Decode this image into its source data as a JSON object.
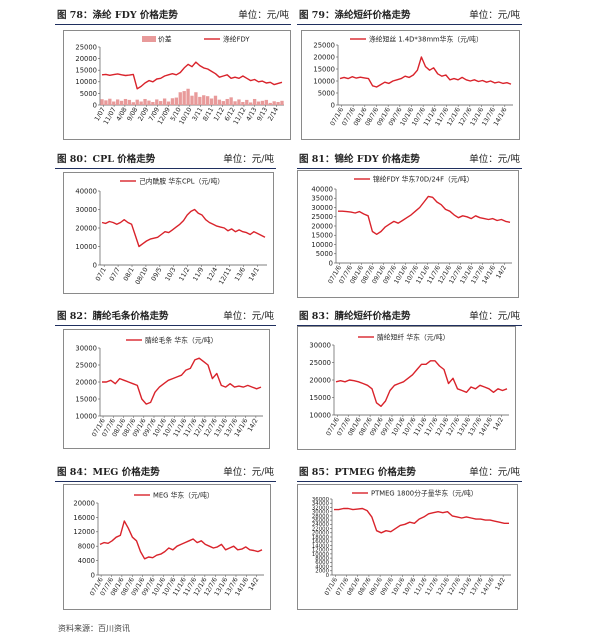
{
  "unit_prefix": "单位：",
  "source": "资料来源：百川资讯",
  "chart_data": [
    {
      "id": "c78",
      "fig": "图 78：",
      "title": "涤纶 FDY 价格走势",
      "unit": "元/吨",
      "type": "line+bar",
      "ylim": [
        0,
        25000
      ],
      "yticks": [
        0,
        5000,
        10000,
        15000,
        20000,
        25000
      ],
      "xticks": [
        "1/07",
        "11/07",
        "4/08",
        "9/08",
        "2/09",
        "7/09",
        "12/09",
        "5/10",
        "10/10",
        "3/11",
        "8/11",
        "1/12",
        "6/12",
        "11/12",
        "4/13",
        "9/13",
        "2/14"
      ],
      "series": [
        {
          "name": "涤纶FDY",
          "kind": "line",
          "color": "#d9232b",
          "values": [
            13000,
            13200,
            12800,
            13100,
            13400,
            13000,
            12700,
            12900,
            13200,
            7000,
            8000,
            9500,
            10500,
            10000,
            11200,
            11500,
            12500,
            13000,
            13500,
            13000,
            14000,
            16000,
            17500,
            16500,
            18500,
            17000,
            16000,
            15500,
            14500,
            13500,
            12000,
            12500,
            13000,
            11500,
            12000,
            11500,
            12500,
            11500,
            10500,
            11000,
            10000,
            10300,
            9500,
            9800,
            8800,
            9300,
            9800
          ]
        },
        {
          "name": "价差",
          "kind": "bar",
          "color": "#e89a9a",
          "values": [
            2500,
            2000,
            2700,
            1500,
            2400,
            1800,
            2600,
            2200,
            1200,
            2300,
            1500,
            2600,
            1900,
            1300,
            2400,
            1700,
            2800,
            1500,
            2900,
            3200,
            5500,
            6000,
            7000,
            4000,
            5500,
            3500,
            4200,
            3800,
            2800,
            4000,
            2300,
            1700,
            2600,
            3300,
            1600,
            2400,
            1300,
            2200,
            1100,
            2600,
            1500,
            1800,
            2200,
            900,
            1600,
            1300,
            1800
          ]
        }
      ]
    },
    {
      "id": "c79",
      "fig": "图 79：",
      "title": "涤纶短纤价格走势",
      "unit": "元/吨",
      "type": "line",
      "ylim": [
        0,
        25000
      ],
      "yticks": [
        0,
        5000,
        10000,
        15000,
        20000,
        25000
      ],
      "xticks": [
        "07/1/6",
        "07/7/6",
        "08/1/6",
        "08/7/6",
        "09/1/6",
        "09/7/6",
        "10/1/6",
        "10/7/6",
        "11/1/6",
        "11/7/6",
        "12/1/6",
        "12/7/6",
        "13/1/6",
        "13/7/6",
        "14/1/6"
      ],
      "series": [
        {
          "name": "涤纶短丝 1.4D*38mm华东（元/吨）",
          "kind": "line",
          "color": "#d9232b",
          "values": [
            11000,
            11500,
            11000,
            11800,
            11200,
            11600,
            11300,
            11000,
            8000,
            7500,
            8500,
            9500,
            9000,
            10000,
            10500,
            11000,
            12000,
            11500,
            12500,
            14500,
            20000,
            16000,
            14500,
            15500,
            13000,
            12000,
            12500,
            10500,
            11000,
            10500,
            11500,
            10500,
            10000,
            10500,
            9800,
            10200,
            9500,
            10000,
            9200,
            9600,
            9000,
            9300,
            8700
          ]
        }
      ]
    },
    {
      "id": "c80",
      "fig": "图 80：",
      "title": "CPL 价格走势",
      "unit": "元/吨",
      "type": "line",
      "ylim": [
        0,
        40000
      ],
      "yticks": [
        0,
        10000,
        20000,
        30000,
        40000
      ],
      "xticks": [
        "07/1",
        "07/7",
        "08/1",
        "08/10",
        "09/5",
        "10/3",
        "11/2",
        "11/9",
        "12/4",
        "12/11",
        "13/6",
        "14/1"
      ],
      "series": [
        {
          "name": "己内酰胺 华东CPL（元/吨）",
          "kind": "line",
          "color": "#d9232b",
          "values": [
            23000,
            22500,
            23500,
            23000,
            22000,
            23000,
            24500,
            23000,
            22000,
            16000,
            10000,
            11500,
            13000,
            14000,
            14500,
            15000,
            16500,
            18000,
            17500,
            19000,
            20500,
            22000,
            24000,
            27000,
            29000,
            30000,
            28000,
            27000,
            24500,
            23000,
            22000,
            21000,
            20500,
            20000,
            18500,
            19500,
            18000,
            19000,
            18000,
            17500,
            16500,
            18000,
            17000,
            16000,
            15000
          ]
        }
      ]
    },
    {
      "id": "c81",
      "fig": "图 81：",
      "title": "锦纶 FDY 价格走势",
      "unit": "元/吨",
      "type": "line",
      "ylim": [
        0,
        40000
      ],
      "yticks": [
        0,
        5000,
        10000,
        15000,
        20000,
        25000,
        30000,
        35000,
        40000
      ],
      "xticks": [
        "07/1/6",
        "07/7/6",
        "08/1/6",
        "08/7/6",
        "09/1/6",
        "09/7/6",
        "10/1/6",
        "10/7/6",
        "11/1/6",
        "11/7/6",
        "12/1/6",
        "12/7/6",
        "13/1/6",
        "13/7/6",
        "14/1/6",
        "14/2"
      ],
      "series": [
        {
          "name": "锦纶FDY 华东70D/24F（元/吨）",
          "kind": "line",
          "color": "#d9232b",
          "values": [
            28000,
            28000,
            27800,
            27500,
            27000,
            27800,
            26500,
            25500,
            17000,
            15500,
            17000,
            19500,
            21000,
            22500,
            21500,
            23000,
            24500,
            26000,
            28000,
            30000,
            33000,
            36000,
            35500,
            33000,
            31500,
            29000,
            28000,
            26000,
            24500,
            25500,
            25000,
            24000,
            25500,
            24500,
            24000,
            23500,
            24000,
            23000,
            23500,
            22500,
            22000
          ]
        }
      ]
    },
    {
      "id": "c82",
      "fig": "图 82：",
      "title": "腈纶毛条价格走势",
      "unit": "元/吨",
      "type": "line",
      "ylim": [
        10000,
        30000
      ],
      "yticks": [
        10000,
        15000,
        20000,
        25000,
        30000
      ],
      "xticks": [
        "07/1/6",
        "07/7/6",
        "08/1/6",
        "08/7/6",
        "09/1/6",
        "09/7/6",
        "10/1/6",
        "10/7/6",
        "11/1/6",
        "11/7/6",
        "12/1/6",
        "12/7/6",
        "13/1/6",
        "13/7/6",
        "14/1/6",
        "14/2"
      ],
      "series": [
        {
          "name": "腈纶毛条 华东（元/吨）",
          "kind": "line",
          "color": "#d9232b",
          "values": [
            20000,
            20000,
            20500,
            19500,
            21000,
            20500,
            20000,
            19500,
            19000,
            15000,
            13500,
            14000,
            17000,
            18500,
            19500,
            20500,
            21000,
            21500,
            22000,
            23500,
            24000,
            26500,
            27000,
            26000,
            25000,
            21000,
            22500,
            19000,
            18500,
            19500,
            18500,
            18800,
            18500,
            19000,
            18500,
            18000,
            18500
          ]
        }
      ]
    },
    {
      "id": "c83",
      "fig": "图 83：",
      "title": "腈纶短纤价格走势",
      "unit": "元/吨",
      "type": "line",
      "ylim": [
        10000,
        30000
      ],
      "yticks": [
        10000,
        15000,
        20000,
        25000,
        30000
      ],
      "xticks": [
        "07/1/6",
        "07/7/6",
        "08/1/6",
        "08/7/6",
        "09/1/6",
        "09/7/6",
        "10/1/6",
        "10/7/6",
        "11/1/6",
        "11/7/6",
        "12/1/6",
        "12/7/6",
        "13/1/6",
        "13/7/6",
        "14/1/6",
        "14/2"
      ],
      "series": [
        {
          "name": "腈纶短纤 华东（元/吨）",
          "kind": "line",
          "color": "#d9232b",
          "values": [
            19500,
            19800,
            19500,
            20000,
            19800,
            19500,
            19000,
            18500,
            17500,
            13500,
            12500,
            14000,
            17000,
            18500,
            19000,
            19500,
            20500,
            21500,
            23000,
            24500,
            24500,
            25500,
            25500,
            24000,
            23000,
            19000,
            20500,
            17500,
            17000,
            16500,
            18000,
            17500,
            18500,
            18000,
            17500,
            16500,
            17500,
            17000,
            17500
          ]
        }
      ]
    },
    {
      "id": "c84",
      "fig": "图 84：",
      "title": "MEG 价格走势",
      "unit": "元/吨",
      "type": "line",
      "ylim": [
        0,
        20000
      ],
      "yticks": [
        0,
        4000,
        8000,
        12000,
        16000,
        20000
      ],
      "xticks": [
        "07/1/6",
        "07/7/6",
        "08/1/6",
        "08/7/6",
        "09/1/6",
        "09/7/6",
        "10/1/6",
        "10/7/6",
        "11/1/6",
        "11/7/6",
        "12/1/6",
        "12/7/6",
        "13/1/6",
        "13/7/6",
        "14/1/6",
        "14/2"
      ],
      "series": [
        {
          "name": "MEG 华东（元/吨）",
          "kind": "line",
          "color": "#d9232b",
          "values": [
            8500,
            9000,
            8800,
            9500,
            10500,
            11000,
            15000,
            13000,
            10500,
            9500,
            6500,
            4500,
            5000,
            4800,
            5500,
            5800,
            6500,
            7500,
            7000,
            8000,
            8500,
            9000,
            9500,
            10000,
            9000,
            9500,
            8500,
            8000,
            7500,
            7800,
            8500,
            7000,
            7500,
            8000,
            7000,
            7200,
            7800,
            7000,
            6800,
            6500,
            7000
          ]
        }
      ]
    },
    {
      "id": "c85",
      "fig": "图 85：",
      "title": "PTMEG 价格走势",
      "unit": "元/吨",
      "type": "line",
      "ylim": [
        0,
        36000
      ],
      "yticks": [
        0,
        2000,
        4000,
        6000,
        8000,
        10000,
        12000,
        14000,
        16000,
        18000,
        20000,
        22000,
        24000,
        26000,
        28000,
        30000,
        32000,
        34000,
        36000
      ],
      "xticks": [
        "07/1/6",
        "07/7/6",
        "08/1/6",
        "08/7/6",
        "09/1/6",
        "09/7/6",
        "10/1/6",
        "10/7/6",
        "11/1/6",
        "11/7/6",
        "12/1/6",
        "12/7/6",
        "13/1/6",
        "13/7/6",
        "14/1/6",
        "14/2"
      ],
      "series": [
        {
          "name": "PTMEG 1800分子量华东（元/吨）",
          "kind": "line",
          "color": "#d9232b",
          "values": [
            31000,
            31000,
            31500,
            31500,
            31000,
            31200,
            31500,
            30500,
            27500,
            21000,
            20000,
            21000,
            20500,
            22000,
            23500,
            24000,
            25000,
            24500,
            26500,
            27500,
            29000,
            29500,
            30000,
            29500,
            30000,
            28000,
            27500,
            27000,
            27500,
            27000,
            26500,
            26500,
            26000,
            26000,
            25500,
            25000,
            24500,
            24500
          ]
        }
      ]
    }
  ]
}
